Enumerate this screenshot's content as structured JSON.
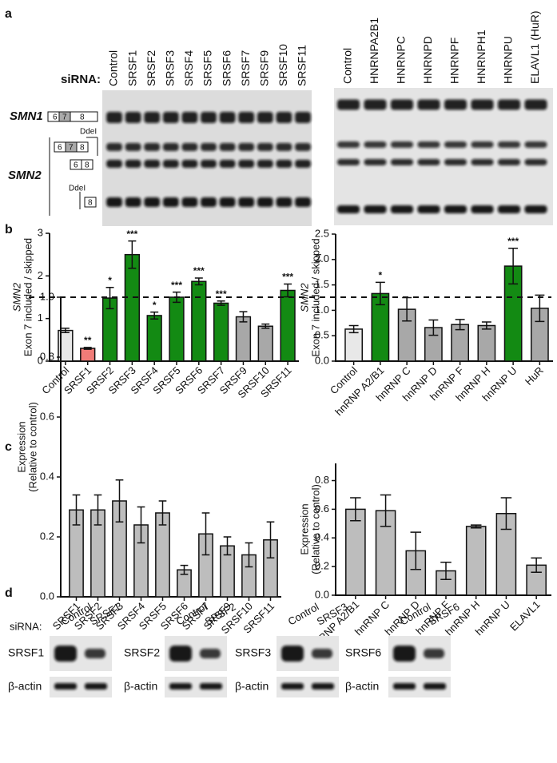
{
  "panel_labels": [
    "a",
    "b",
    "c",
    "d"
  ],
  "gels": {
    "sirna": "siRNA:",
    "smn1": "SMN1",
    "smn2": "SMN2",
    "ddei": "DdeI",
    "exons": [
      "6",
      "7",
      "8"
    ],
    "left_lanes": [
      "Control",
      "SRSF1",
      "SRSF2",
      "SRSF3",
      "SRSF4",
      "SRSF5",
      "SRSF6",
      "SRSF7",
      "SRSF9",
      "SRSF10",
      "SRSF11"
    ],
    "right_lanes": [
      "Control",
      "HNRNPA2B1",
      "HNRNPC",
      "HNRNPD",
      "HNRNPF",
      "HNRNPH1",
      "HNRNPU",
      "ELAVL1 (HuR)"
    ]
  },
  "blots": {
    "sirna": "siRNA:",
    "loading": "β-actin",
    "groups": [
      {
        "lanes": [
          "Control",
          "SRSF1"
        ],
        "target": "SRSF1"
      },
      {
        "lanes": [
          "Control",
          "SRSF2"
        ],
        "target": "SRSF2"
      },
      {
        "lanes": [
          "Control",
          "SRSF3"
        ],
        "target": "SRSF3"
      },
      {
        "lanes": [
          "Control",
          "SRSF6"
        ],
        "target": "SRSF6"
      }
    ]
  },
  "chart_data": [
    {
      "type": "bar",
      "ylabel": [
        "SMN2",
        "Exon 7 included / skipped"
      ],
      "ylabel_italic_first": true,
      "categories": [
        "Control",
        "SRSF1",
        "SRSF2",
        "SRSF3",
        "SRSF4",
        "SRSF5",
        "SRSF6",
        "SRSF7",
        "SRSF9",
        "SRSF10",
        "SRSF11"
      ],
      "values": [
        0.72,
        0.3,
        1.48,
        2.5,
        1.07,
        1.5,
        1.87,
        1.36,
        1.04,
        0.82,
        1.66
      ],
      "errors": [
        0.05,
        0.02,
        0.25,
        0.32,
        0.08,
        0.12,
        0.08,
        0.05,
        0.12,
        0.05,
        0.15
      ],
      "annotations": [
        null,
        "**",
        "*",
        "***",
        "*",
        "***",
        "***",
        "***",
        null,
        null,
        "***"
      ],
      "colors": [
        "#e8e8e8",
        "#f07c78",
        "#138a13",
        "#138a13",
        "#138a13",
        "#138a13",
        "#138a13",
        "#138a13",
        "#a8a8a8",
        "#a8a8a8",
        "#138a13"
      ],
      "ylim": [
        0,
        3
      ],
      "yticks": [
        0,
        1,
        2,
        3
      ]
    },
    {
      "type": "bar",
      "ylabel": [
        "SMN2",
        "Exon 7 included / skipped"
      ],
      "ylabel_italic_first": true,
      "categories": [
        "Control",
        "hnRNP A2/B1",
        "hnRNP C",
        "hnRNP D",
        "hnRNP F",
        "hnRNP H",
        "hnRNP U",
        "HuR"
      ],
      "values": [
        0.63,
        1.33,
        1.02,
        0.66,
        0.72,
        0.7,
        1.87,
        1.04
      ],
      "errors": [
        0.07,
        0.22,
        0.23,
        0.15,
        0.1,
        0.07,
        0.35,
        0.26
      ],
      "annotations": [
        null,
        "*",
        null,
        null,
        null,
        null,
        "***",
        null
      ],
      "colors": [
        "#e8e8e8",
        "#138a13",
        "#a8a8a8",
        "#a8a8a8",
        "#a8a8a8",
        "#a8a8a8",
        "#138a13",
        "#a8a8a8"
      ],
      "ylim": [
        0,
        2.5
      ],
      "yticks": [
        {
          "value": 0,
          "label": "0.0"
        },
        0.5,
        {
          "value": 1,
          "label": "1.0"
        },
        1.5,
        {
          "value": 2,
          "label": "2.0"
        },
        2.5
      ]
    },
    {
      "type": "bar",
      "ylabel": [
        "Expression",
        "(Relative to control)"
      ],
      "ylabel_italic_first": false,
      "categories": [
        "SRSF1",
        "SRSF2",
        "SRSF3",
        "SRSF4",
        "SRSF5",
        "SRSF6",
        "SRSF7",
        "SRSF9",
        "SRSF10",
        "SRSF11"
      ],
      "values": [
        0.29,
        0.29,
        0.32,
        0.24,
        0.28,
        0.09,
        0.21,
        0.17,
        0.14,
        0.19
      ],
      "errors": [
        0.05,
        0.05,
        0.07,
        0.06,
        0.04,
        0.015,
        0.07,
        0.03,
        0.04,
        0.06
      ],
      "color": "#bdbdbd",
      "reference_line": 1,
      "ylim": [
        0,
        1
      ],
      "yticks": [
        {
          "value": 0,
          "label": "0.0"
        },
        0.2,
        0.4,
        0.6,
        0.8,
        {
          "value": 1,
          "label": "1.0"
        }
      ]
    },
    {
      "type": "bar",
      "ylabel": [
        "Expression",
        "(Relative to control)"
      ],
      "ylabel_italic_first": false,
      "categories": [
        "hnRNP A2/B1",
        "hnRNP C",
        "hnRNP D",
        "hnRNP F",
        "hnRNP H",
        "hnRNP U",
        "ELAVL1"
      ],
      "values": [
        0.6,
        0.59,
        0.31,
        0.17,
        0.48,
        0.57,
        0.21
      ],
      "errors": [
        0.08,
        0.11,
        0.13,
        0.06,
        0.01,
        0.11,
        0.05
      ],
      "color": "#bdbdbd",
      "ylim": [
        0,
        0.92
      ],
      "yticks": [
        {
          "value": 0,
          "label": "0.0"
        },
        0.2,
        0.4,
        0.6,
        0.8
      ]
    }
  ]
}
